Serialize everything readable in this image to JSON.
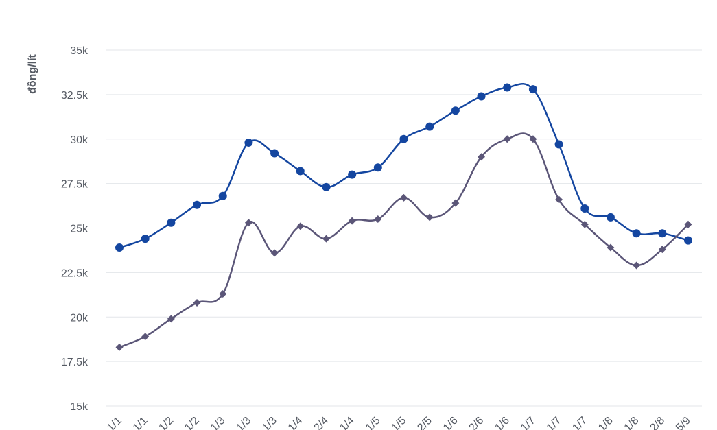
{
  "chart_data": {
    "type": "line",
    "ylabel": "đồng/lít",
    "ylim": [
      15000,
      35000
    ],
    "yticks": [
      {
        "value": 15000,
        "label": "15k"
      },
      {
        "value": 17500,
        "label": "17.5k"
      },
      {
        "value": 20000,
        "label": "20k"
      },
      {
        "value": 22500,
        "label": "22.5k"
      },
      {
        "value": 25000,
        "label": "25k"
      },
      {
        "value": 27500,
        "label": "27.5k"
      },
      {
        "value": 30000,
        "label": "30k"
      },
      {
        "value": 32500,
        "label": "32.5k"
      },
      {
        "value": 35000,
        "label": "35k"
      }
    ],
    "x": [
      "1/1",
      "1/1",
      "1/2",
      "1/2",
      "1/3",
      "1/3",
      "1/3",
      "1/4",
      "2/4",
      "1/4",
      "1/5",
      "1/5",
      "2/5",
      "1/6",
      "2/6",
      "1/6",
      "1/7",
      "1/7",
      "1/7",
      "1/8",
      "1/8",
      "2/8",
      "5/9"
    ],
    "grid": true,
    "series": [
      {
        "color": "#1446a0",
        "marker": "circle",
        "values": [
          23900,
          24400,
          25300,
          26300,
          26800,
          29800,
          29200,
          28200,
          27300,
          28000,
          28400,
          30000,
          30700,
          31600,
          32400,
          32900,
          32800,
          29700,
          26100,
          25600,
          24700,
          24700,
          24300
        ]
      },
      {
        "color": "#5b5678",
        "marker": "diamond",
        "values": [
          18300,
          18900,
          19900,
          20800,
          21300,
          25300,
          23600,
          25100,
          24400,
          25400,
          25500,
          26700,
          25600,
          26400,
          29000,
          30000,
          30000,
          26600,
          25200,
          23900,
          22900,
          23800,
          25200
        ]
      }
    ]
  }
}
